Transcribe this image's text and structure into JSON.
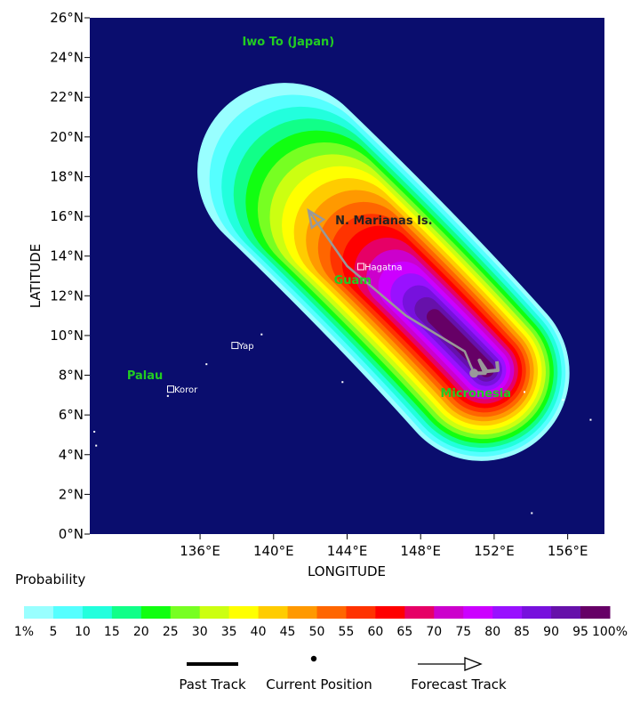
{
  "map": {
    "ocean_color": "#0a0d6e",
    "xlabel": "LONGITUDE",
    "ylabel": "LATITUDE",
    "lon_range": [
      130.0,
      158.0
    ],
    "lat_range": [
      0,
      26
    ],
    "lon_ticks": [
      {
        "value": 136,
        "label": "136°E"
      },
      {
        "value": 140,
        "label": "140°E"
      },
      {
        "value": 144,
        "label": "144°E"
      },
      {
        "value": 148,
        "label": "148°E"
      },
      {
        "value": 152,
        "label": "152°E"
      },
      {
        "value": 156,
        "label": "156°E"
      }
    ],
    "lat_ticks": [
      {
        "value": 0,
        "label": "0°N"
      },
      {
        "value": 2,
        "label": "2°N"
      },
      {
        "value": 4,
        "label": "4°N"
      },
      {
        "value": 6,
        "label": "6°N"
      },
      {
        "value": 8,
        "label": "8°N"
      },
      {
        "value": 10,
        "label": "10°N"
      },
      {
        "value": 12,
        "label": "12°N"
      },
      {
        "value": 14,
        "label": "14°N"
      },
      {
        "value": 16,
        "label": "16°N"
      },
      {
        "value": 18,
        "label": "18°N"
      },
      {
        "value": 20,
        "label": "20°N"
      },
      {
        "value": 22,
        "label": "22°N"
      },
      {
        "value": 24,
        "label": "24°N"
      },
      {
        "value": 26,
        "label": "26°N"
      }
    ],
    "regions": [
      {
        "name": "Iwo To (Japan)",
        "lon": 140.8,
        "lat": 24.6,
        "color": "#22cc22"
      },
      {
        "name": "N. Marianas Is.",
        "lon": 146.0,
        "lat": 15.6,
        "color": "#222222"
      },
      {
        "name": "Guam",
        "lon": 144.3,
        "lat": 12.6,
        "color": "#22cc22"
      },
      {
        "name": "Palau",
        "lon": 133.0,
        "lat": 7.8,
        "color": "#22cc22"
      },
      {
        "name": "Micronesia",
        "lon": 151.0,
        "lat": 6.9,
        "color": "#22cc22"
      }
    ],
    "cities": [
      {
        "name": "Hagatna",
        "lon": 144.75,
        "lat": 13.47
      },
      {
        "name": "Yap",
        "lon": 137.9,
        "lat": 9.5
      },
      {
        "name": "Koror",
        "lon": 134.4,
        "lat": 7.3
      }
    ],
    "probability_field": {
      "core": [
        {
          "lon": 151.6,
          "lat": 8.3
        },
        {
          "lon": 148.0,
          "lat": 11.0
        },
        {
          "lon": 144.3,
          "lat": 14.4
        },
        {
          "lon": 141.9,
          "lat": 17.3
        }
      ]
    },
    "track": {
      "color": "#999999",
      "past": [
        {
          "lon": 152.15,
          "lat": 8.7
        },
        {
          "lon": 152.2,
          "lat": 8.25
        },
        {
          "lon": 151.6,
          "lat": 8.2
        },
        {
          "lon": 151.2,
          "lat": 8.75
        },
        {
          "lon": 151.5,
          "lat": 8.1
        },
        {
          "lon": 150.9,
          "lat": 8.1
        }
      ],
      "current": {
        "lon": 150.9,
        "lat": 8.1
      },
      "forecast": [
        {
          "lon": 150.9,
          "lat": 8.1
        },
        {
          "lon": 150.4,
          "lat": 9.2
        },
        {
          "lon": 147.2,
          "lat": 11.0
        },
        {
          "lon": 144.0,
          "lat": 13.5
        },
        {
          "lon": 141.9,
          "lat": 16.3
        }
      ]
    }
  },
  "scale": {
    "title": "Probability",
    "colors": [
      "#99ffff",
      "#55ffff",
      "#22ffdd",
      "#11ff88",
      "#11ff11",
      "#77ff22",
      "#ccff11",
      "#ffff00",
      "#ffcc00",
      "#ff9900",
      "#ff6600",
      "#ff3300",
      "#ff0000",
      "#e60066",
      "#cc00cc",
      "#cc00ff",
      "#9911ff",
      "#7711dd",
      "#6611aa",
      "#660066"
    ],
    "labels": [
      "1%",
      "5",
      "10",
      "15",
      "20",
      "25",
      "30",
      "35",
      "40",
      "45",
      "50",
      "55",
      "60",
      "65",
      "70",
      "75",
      "80",
      "85",
      "90",
      "95",
      "100%"
    ]
  },
  "legend": {
    "past_track": "Past Track",
    "current_position": "Current Position",
    "forecast_track": "Forecast Track"
  }
}
